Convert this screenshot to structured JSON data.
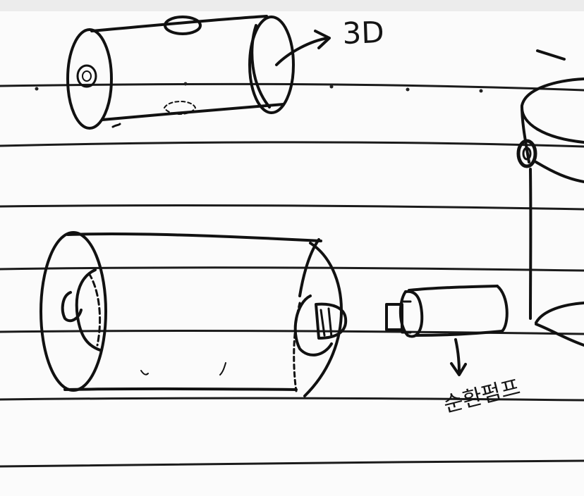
{
  "sketch": {
    "annotation_3d": "3D",
    "annotation_korean": "순환펌프"
  },
  "colors": {
    "paper": "#fbfbfb",
    "ink": "#111111"
  }
}
